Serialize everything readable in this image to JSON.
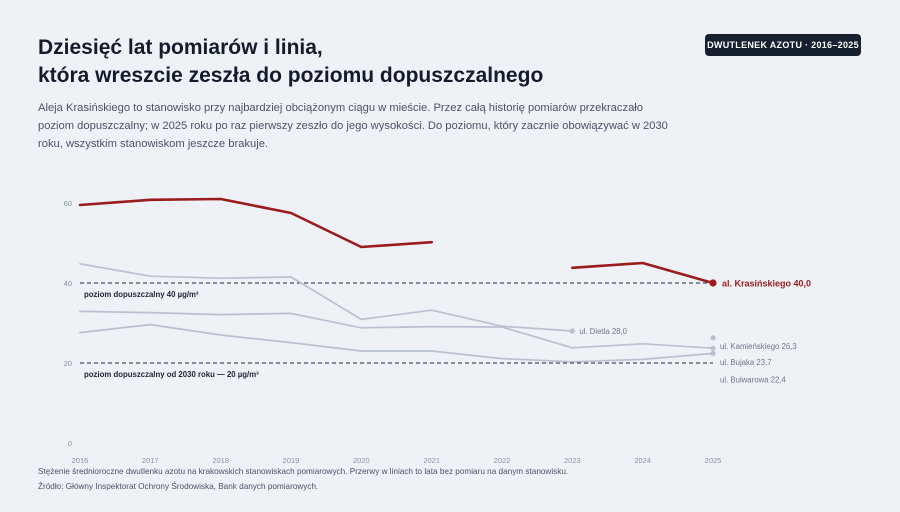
{
  "header": {
    "title_line1": "Dziesięć lat pomiarów i linia,",
    "title_line2": "która wreszcie zeszła do poziomu dopuszczalnego",
    "badge": "DWUTLENEK AZOTU · 2016–2025",
    "lede": "Aleja Krasińskiego to stanowisko przy najbardziej obciążonym ciągu w mieście. Przez całą historię pomiarów przekraczało poziom dopuszczalny; w 2025 roku po raz pierwszy zeszło do jego wysokości. Do poziomu, który zacznie obowiązywać w 2030 roku, wszystkim stanowiskom jeszcze brakuje."
  },
  "footer": {
    "note": "Stężenie średnioroczne dwutlenku azotu na krakowskich stanowiskach pomiarowych. Przerwy w liniach to lata bez pomiaru na danym stanowisku.",
    "source": "Źródło: Główny Inspektorat Ochrony Środowiska, Bank danych pomiarowych."
  },
  "colors": {
    "highlight": "#9b1c1c",
    "muted": "#b9c1cf",
    "reference": "#1c2433",
    "axis_text": "#8a93a3"
  },
  "chart_data": {
    "type": "line",
    "x": [
      2016,
      2017,
      2018,
      2019,
      2020,
      2021,
      2022,
      2023,
      2024,
      2025
    ],
    "ylim": [
      0,
      60
    ],
    "yticks": [
      0,
      20,
      40,
      60
    ],
    "grid": false,
    "series": [
      {
        "name": "al. Krasińskiego",
        "end_label": "al. Krasińskiego 40,0",
        "highlight": true,
        "values": [
          59.5,
          60.8,
          61.0,
          57.5,
          49.0,
          50.2,
          null,
          43.8,
          45.0,
          40.0
        ]
      },
      {
        "name": "ul. Dietla",
        "end_label": "ul. Dietla 28,0",
        "highlight": false,
        "values": [
          44.8,
          41.7,
          41.2,
          41.5,
          30.9,
          33.2,
          29.2,
          28.0,
          null,
          null
        ]
      },
      {
        "name": "ul. Kamieńskiego",
        "end_label": "ul. Kamieńskiego 26,3",
        "highlight": false,
        "values": [
          null,
          null,
          null,
          null,
          null,
          null,
          null,
          null,
          null,
          26.3
        ]
      },
      {
        "name": "ul. Bujaka",
        "end_label": "ul. Bujaka 23,7",
        "highlight": false,
        "values": [
          32.9,
          32.6,
          32.1,
          32.4,
          28.8,
          29.1,
          29.0,
          23.8,
          24.8,
          23.7
        ]
      },
      {
        "name": "ul. Bulwarowa",
        "end_label": "ul. Bulwarowa 22,4",
        "highlight": false,
        "values": [
          27.6,
          29.6,
          27.0,
          25.1,
          23.0,
          23.0,
          21.1,
          20.3,
          20.9,
          22.4
        ]
      }
    ],
    "reference_lines": [
      {
        "value": 40,
        "label": "poziom dopuszczalny 40 µg/m³"
      },
      {
        "value": 20,
        "label": "poziom dopuszczalny od 2030 roku — 20 µg/m³"
      }
    ]
  }
}
